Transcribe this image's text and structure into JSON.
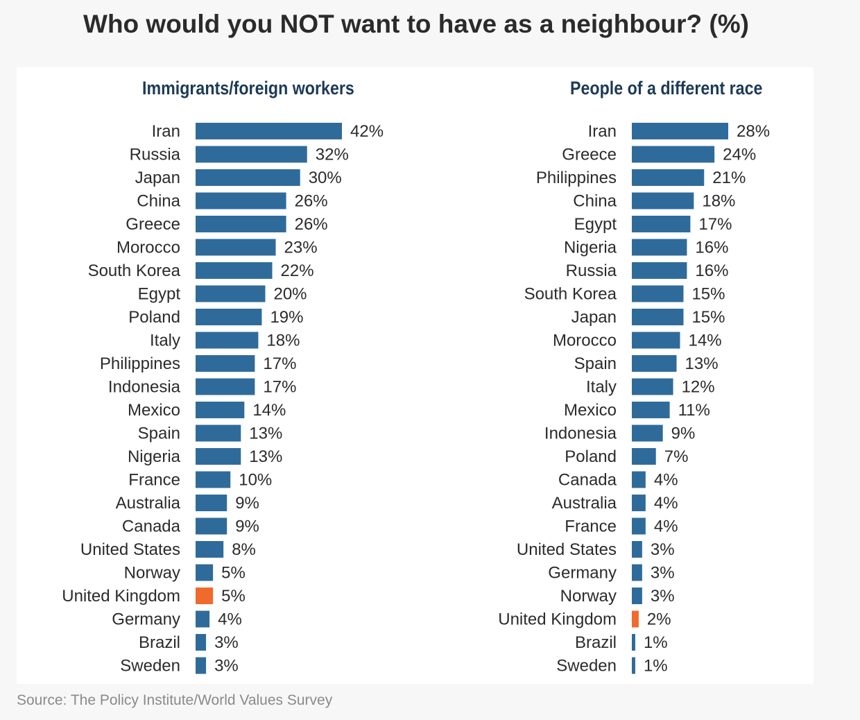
{
  "title": "Who would you NOT want to have as a neighbour? (%)",
  "source": "Source: The Policy Institute/World Values Survey",
  "colors": {
    "bar": "#2f6b9a",
    "highlight": "#f06a2c"
  },
  "chart_data": [
    {
      "type": "bar",
      "orientation": "horizontal",
      "title": "Immigrants/foreign workers",
      "unit": "%",
      "xlim": [
        0,
        42
      ],
      "highlight": "United Kingdom",
      "categories": [
        "Iran",
        "Russia",
        "Japan",
        "China",
        "Greece",
        "Morocco",
        "South Korea",
        "Egypt",
        "Poland",
        "Italy",
        "Philippines",
        "Indonesia",
        "Mexico",
        "Spain",
        "Nigeria",
        "France",
        "Australia",
        "Canada",
        "United States",
        "Norway",
        "United Kingdom",
        "Germany",
        "Brazil",
        "Sweden"
      ],
      "values": [
        42,
        32,
        30,
        26,
        26,
        23,
        22,
        20,
        19,
        18,
        17,
        17,
        14,
        13,
        13,
        10,
        9,
        9,
        8,
        5,
        5,
        4,
        3,
        3
      ],
      "value_labels": [
        "42%",
        "32%",
        "30%",
        "26%",
        "26%",
        "23%",
        "22%",
        "20%",
        "19%",
        "18%",
        "17%",
        "17%",
        "14%",
        "13%",
        "13%",
        "10%",
        "9%",
        "9%",
        "8%",
        "5%",
        "5%",
        "4%",
        "3%",
        "3%"
      ]
    },
    {
      "type": "bar",
      "orientation": "horizontal",
      "title": "People of a different race",
      "unit": "%",
      "xlim": [
        0,
        28
      ],
      "highlight": "United Kingdom",
      "categories": [
        "Iran",
        "Greece",
        "Philippines",
        "China",
        "Egypt",
        "Nigeria",
        "Russia",
        "South Korea",
        "Japan",
        "Morocco",
        "Spain",
        "Italy",
        "Mexico",
        "Indonesia",
        "Poland",
        "Canada",
        "Australia",
        "France",
        "United States",
        "Germany",
        "Norway",
        "United Kingdom",
        "Brazil",
        "Sweden"
      ],
      "values": [
        28,
        24,
        21,
        18,
        17,
        16,
        16,
        15,
        15,
        14,
        13,
        12,
        11,
        9,
        7,
        4,
        4,
        4,
        3,
        3,
        3,
        2,
        1,
        1
      ],
      "value_labels": [
        "28%",
        "24%",
        "21%",
        "18%",
        "17%",
        "16%",
        "16%",
        "15%",
        "15%",
        "14%",
        "13%",
        "12%",
        "11%",
        "9%",
        "7%",
        "4%",
        "4%",
        "4%",
        "3%",
        "3%",
        "3%",
        "2%",
        "1%",
        "1%"
      ]
    }
  ]
}
